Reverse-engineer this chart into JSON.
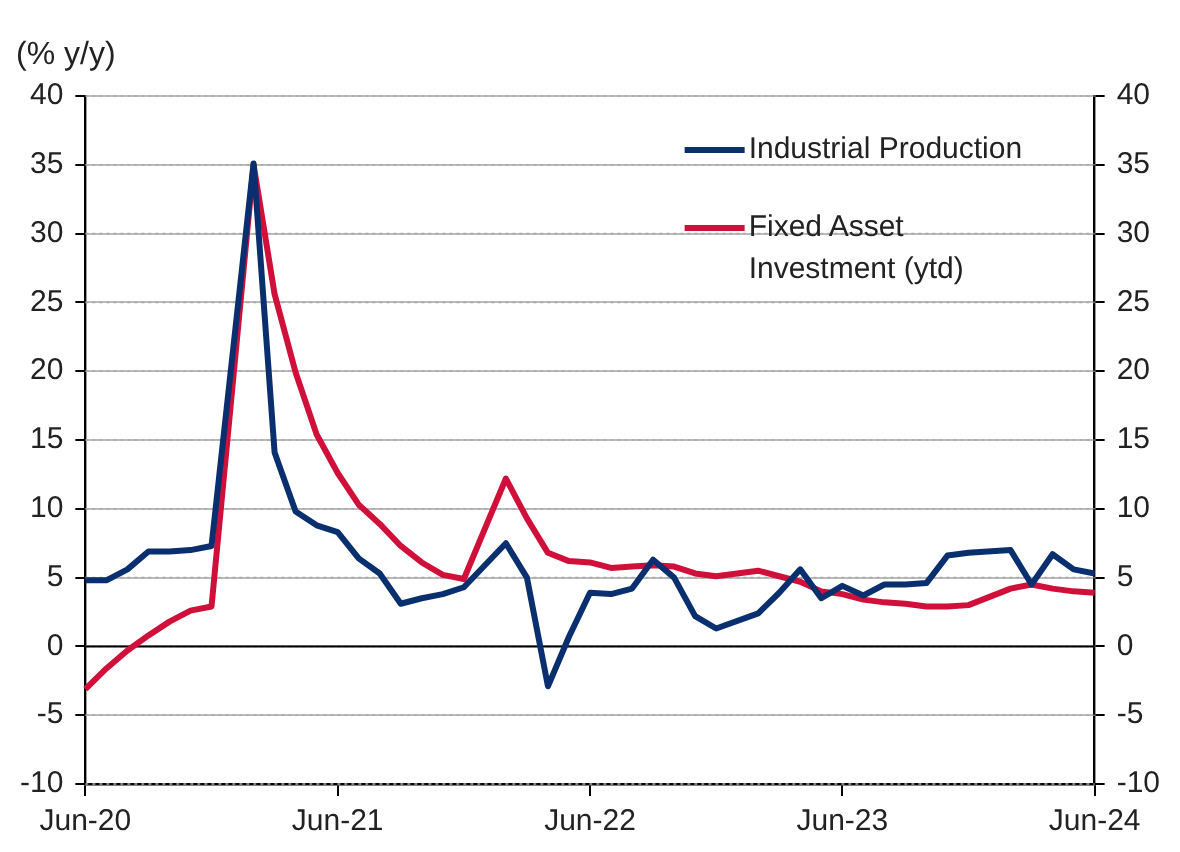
{
  "chart_data": {
    "type": "line",
    "ylabel": "(% y/y)",
    "categories": [
      "Jun-20",
      null,
      null,
      null,
      null,
      null,
      null,
      null,
      null,
      null,
      null,
      null,
      "Jun-21",
      null,
      null,
      null,
      null,
      null,
      null,
      null,
      null,
      null,
      null,
      null,
      "Jun-22",
      null,
      null,
      null,
      null,
      null,
      null,
      null,
      null,
      null,
      null,
      null,
      "Jun-23",
      null,
      null,
      null,
      null,
      null,
      null,
      null,
      null,
      null,
      null,
      null,
      "Jun-24"
    ],
    "series": [
      {
        "name": "Industrial Production",
        "color": "#0a2f6e",
        "values": [
          4.8,
          4.8,
          5.6,
          6.9,
          6.9,
          7.0,
          7.3,
          null,
          35.1,
          14.1,
          9.8,
          8.8,
          8.3,
          6.4,
          5.3,
          3.1,
          3.5,
          3.8,
          4.3,
          null,
          7.5,
          5.0,
          -2.9,
          0.7,
          3.9,
          3.8,
          4.2,
          6.3,
          5.0,
          2.2,
          1.3,
          null,
          2.4,
          3.9,
          5.6,
          3.5,
          4.4,
          3.7,
          4.5,
          4.5,
          4.6,
          6.6,
          6.8,
          null,
          7.0,
          4.5,
          6.7,
          5.6,
          5.3
        ]
      },
      {
        "name": "Fixed Asset Investment (ytd)",
        "color": "#d0103a",
        "values": [
          -3.1,
          -1.6,
          -0.3,
          0.8,
          1.8,
          2.6,
          2.9,
          null,
          35.0,
          25.6,
          19.9,
          15.4,
          12.6,
          10.3,
          8.9,
          7.3,
          6.1,
          5.2,
          4.9,
          null,
          12.2,
          9.3,
          6.8,
          6.2,
          6.1,
          5.7,
          5.8,
          5.9,
          5.8,
          5.3,
          5.1,
          null,
          5.5,
          5.1,
          4.7,
          4.0,
          3.8,
          3.4,
          3.2,
          3.1,
          2.9,
          2.9,
          3.0,
          null,
          4.2,
          4.5,
          4.2,
          4.0,
          3.9
        ]
      }
    ],
    "ylim": [
      -10,
      40
    ],
    "yticks": [
      -10,
      -5,
      0,
      5,
      10,
      15,
      20,
      25,
      30,
      35,
      40
    ],
    "y2lim": [
      -10,
      40
    ],
    "y2ticks": [
      -10,
      -5,
      0,
      5,
      10,
      15,
      20,
      25,
      30,
      35,
      40
    ],
    "grid": "y",
    "legend": "top right",
    "ref_lines": [
      {
        "axis": "y",
        "value": 0,
        "color": "#000000"
      }
    ]
  }
}
